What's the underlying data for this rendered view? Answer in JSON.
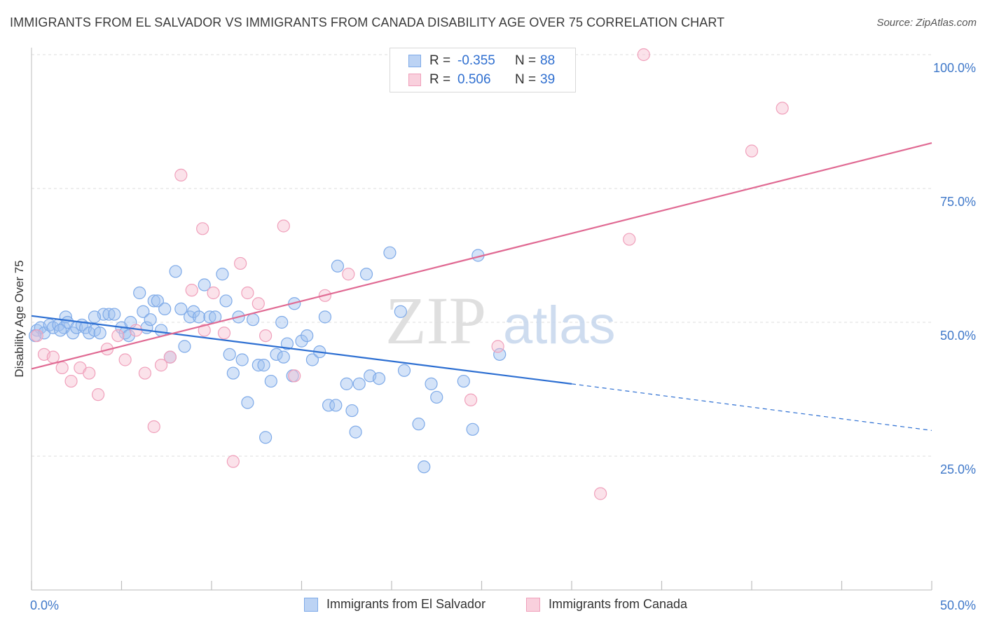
{
  "title": "IMMIGRANTS FROM EL SALVADOR VS IMMIGRANTS FROM CANADA DISABILITY AGE OVER 75 CORRELATION CHART",
  "source": "Source: ZipAtlas.com",
  "watermark": {
    "zip": "ZIP",
    "atlas": "atlas"
  },
  "legend_stats": [
    {
      "r_label": "R =",
      "r_value": "-0.355",
      "n_label": "N =",
      "n_value": "88",
      "color": "#7eaae8",
      "fill": "#bcd3f4"
    },
    {
      "r_label": "R =",
      "r_value": "0.506",
      "n_label": "N =",
      "n_value": "39",
      "color": "#f0a0bb",
      "fill": "#f9d0dd"
    }
  ],
  "legend_bottom": [
    {
      "label": "Immigrants from El Salvador",
      "color": "#7eaae8",
      "fill": "#bcd3f4"
    },
    {
      "label": "Immigrants from Canada",
      "color": "#f0a0bb",
      "fill": "#f9d0dd"
    }
  ],
  "chart_data": {
    "type": "scatter",
    "title": "IMMIGRANTS FROM EL SALVADOR VS IMMIGRANTS FROM CANADA DISABILITY AGE OVER 75 CORRELATION CHART",
    "xlabel": "",
    "ylabel": "Disability Age Over 75",
    "xlim": [
      0,
      50
    ],
    "ylim": [
      0,
      100
    ],
    "x_tick_labels": [
      "0.0%",
      "50.0%"
    ],
    "y_ticks": [
      25,
      50,
      75,
      100
    ],
    "y_tick_labels": [
      "25.0%",
      "50.0%",
      "75.0%",
      "100.0%"
    ],
    "grid": true,
    "legend_position": "top-center",
    "series": [
      {
        "name": "Immigrants from El Salvador",
        "color": "#7eaae8",
        "trend": {
          "x0": 0,
          "y0": 51.2,
          "x1": 30,
          "y1": 38.5,
          "dashed_to_x": 50,
          "dashed_to_y": 29.8,
          "color": "#2d6fd2"
        },
        "points": [
          [
            0.3,
            48.5
          ],
          [
            0.5,
            49.0
          ],
          [
            0.7,
            48.0
          ],
          [
            1.0,
            49.5
          ],
          [
            1.2,
            49.0
          ],
          [
            1.5,
            49.5
          ],
          [
            1.8,
            49.0
          ],
          [
            1.9,
            51.0
          ],
          [
            2.0,
            50.0
          ],
          [
            2.3,
            48.0
          ],
          [
            2.5,
            49.0
          ],
          [
            2.8,
            49.5
          ],
          [
            3.0,
            49.0
          ],
          [
            3.2,
            48.0
          ],
          [
            3.5,
            48.5
          ],
          [
            3.8,
            48.0
          ],
          [
            4.0,
            51.5
          ],
          [
            4.3,
            51.5
          ],
          [
            4.6,
            51.5
          ],
          [
            5.0,
            49.0
          ],
          [
            5.2,
            48.0
          ],
          [
            5.4,
            47.5
          ],
          [
            5.5,
            50.0
          ],
          [
            6.0,
            55.5
          ],
          [
            6.2,
            52.0
          ],
          [
            6.4,
            49.0
          ],
          [
            6.6,
            50.5
          ],
          [
            6.8,
            54.0
          ],
          [
            7.0,
            54.0
          ],
          [
            7.2,
            48.5
          ],
          [
            7.4,
            52.5
          ],
          [
            7.7,
            43.5
          ],
          [
            8.0,
            59.5
          ],
          [
            8.3,
            52.5
          ],
          [
            8.5,
            45.5
          ],
          [
            8.8,
            51.0
          ],
          [
            9.0,
            52.0
          ],
          [
            9.3,
            51.0
          ],
          [
            9.6,
            57.0
          ],
          [
            9.9,
            51.0
          ],
          [
            10.2,
            51.0
          ],
          [
            10.6,
            59.0
          ],
          [
            10.8,
            54.0
          ],
          [
            11.0,
            44.0
          ],
          [
            11.2,
            40.5
          ],
          [
            11.5,
            51.0
          ],
          [
            11.7,
            43.0
          ],
          [
            12.0,
            35.0
          ],
          [
            12.3,
            50.5
          ],
          [
            12.6,
            42.0
          ],
          [
            12.9,
            42.0
          ],
          [
            13.0,
            28.5
          ],
          [
            13.3,
            39.0
          ],
          [
            13.6,
            44.0
          ],
          [
            13.9,
            50.0
          ],
          [
            14.0,
            43.5
          ],
          [
            14.2,
            46.0
          ],
          [
            14.5,
            40.0
          ],
          [
            14.6,
            53.5
          ],
          [
            15.0,
            46.5
          ],
          [
            15.3,
            47.5
          ],
          [
            15.6,
            43.0
          ],
          [
            16.0,
            44.5
          ],
          [
            16.3,
            51.0
          ],
          [
            16.5,
            34.5
          ],
          [
            16.9,
            34.5
          ],
          [
            17.0,
            60.5
          ],
          [
            17.5,
            38.5
          ],
          [
            17.8,
            33.5
          ],
          [
            18.0,
            29.5
          ],
          [
            18.2,
            38.5
          ],
          [
            18.6,
            59.0
          ],
          [
            18.8,
            40.0
          ],
          [
            19.3,
            39.5
          ],
          [
            19.9,
            63.0
          ],
          [
            20.5,
            52.0
          ],
          [
            20.7,
            41.0
          ],
          [
            21.5,
            31.0
          ],
          [
            21.8,
            23.0
          ],
          [
            22.2,
            38.5
          ],
          [
            22.5,
            36.0
          ],
          [
            24.0,
            39.0
          ],
          [
            24.5,
            30.0
          ],
          [
            24.8,
            62.5
          ],
          [
            26.0,
            44.0
          ],
          [
            0.2,
            47.5
          ],
          [
            1.6,
            48.5
          ],
          [
            3.5,
            51.0
          ]
        ]
      },
      {
        "name": "Immigrants from Canada",
        "color": "#f0a0bb",
        "trend": {
          "x0": 0,
          "y0": 41.3,
          "x1": 50,
          "y1": 83.5,
          "color": "#e06a93"
        },
        "points": [
          [
            0.3,
            47.5
          ],
          [
            0.7,
            44.0
          ],
          [
            1.2,
            43.5
          ],
          [
            1.7,
            41.5
          ],
          [
            2.2,
            39.0
          ],
          [
            2.7,
            41.5
          ],
          [
            3.2,
            40.5
          ],
          [
            3.7,
            36.5
          ],
          [
            4.2,
            45.0
          ],
          [
            4.8,
            47.5
          ],
          [
            5.2,
            43.0
          ],
          [
            5.8,
            48.5
          ],
          [
            6.3,
            40.5
          ],
          [
            6.8,
            30.5
          ],
          [
            7.2,
            42.0
          ],
          [
            7.7,
            43.5
          ],
          [
            8.3,
            77.5
          ],
          [
            8.9,
            56.0
          ],
          [
            9.5,
            67.5
          ],
          [
            9.6,
            48.5
          ],
          [
            10.1,
            55.5
          ],
          [
            10.7,
            48.0
          ],
          [
            11.2,
            24.0
          ],
          [
            11.6,
            61.0
          ],
          [
            12.0,
            55.5
          ],
          [
            12.6,
            53.5
          ],
          [
            13.0,
            47.5
          ],
          [
            14.0,
            68.0
          ],
          [
            14.6,
            40.0
          ],
          [
            16.3,
            55.0
          ],
          [
            17.6,
            59.0
          ],
          [
            20.5,
            100.0
          ],
          [
            24.4,
            35.5
          ],
          [
            25.9,
            45.5
          ],
          [
            31.6,
            18.0
          ],
          [
            33.2,
            65.5
          ],
          [
            34.0,
            100.0
          ],
          [
            40.0,
            82.0
          ],
          [
            41.7,
            90.0
          ]
        ]
      }
    ]
  }
}
